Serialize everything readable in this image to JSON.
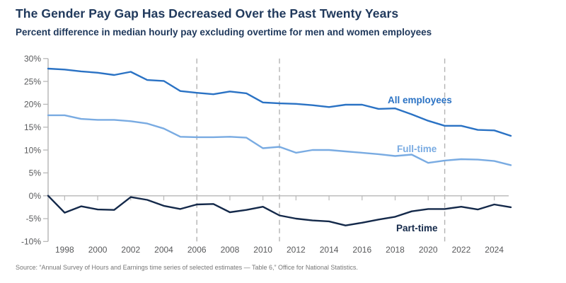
{
  "header": {
    "title": "The Gender Pay Gap Has Decreased Over the Past Twenty Years",
    "subtitle": "Percent difference in median hourly pay excluding overtime for men and women employees"
  },
  "source": "Source: “Annual Survey of Hours and Earnings time series of selected estimates — Table 6,” Office for National Statistics.",
  "colors": {
    "title_text": "#20395c",
    "axis_line": "#b9b9b9",
    "zero_line": "#bdbdbd",
    "dashed_line": "#b3b3b3",
    "tick_text": "#58595b",
    "all_employees": "#2a72c4",
    "full_time": "#79abe2",
    "part_time": "#14294a"
  },
  "chart_data": {
    "type": "line",
    "title": "The Gender Pay Gap Has Decreased Over the Past Twenty Years",
    "subtitle": "Percent difference in median hourly pay excluding overtime for men and women employees",
    "x": [
      1997,
      1998,
      1999,
      2000,
      2001,
      2002,
      2003,
      2004,
      2005,
      2006,
      2007,
      2008,
      2009,
      2010,
      2011,
      2012,
      2013,
      2014,
      2015,
      2016,
      2017,
      2018,
      2019,
      2020,
      2021,
      2022,
      2023,
      2024,
      2025
    ],
    "series": [
      {
        "name": "All employees",
        "color": "#2a72c4",
        "values": [
          27.8,
          27.6,
          27.2,
          26.9,
          26.4,
          27.1,
          25.3,
          25.1,
          22.9,
          22.5,
          22.2,
          22.8,
          22.4,
          20.4,
          20.2,
          20.1,
          19.8,
          19.4,
          19.9,
          19.9,
          19.0,
          19.1,
          17.8,
          16.4,
          15.3,
          15.3,
          14.4,
          14.3,
          13.1
        ]
      },
      {
        "name": "Full-time",
        "color": "#79abe2",
        "values": [
          17.6,
          17.6,
          16.8,
          16.6,
          16.6,
          16.3,
          15.8,
          14.7,
          12.9,
          12.8,
          12.8,
          12.9,
          12.7,
          10.4,
          10.7,
          9.4,
          10.0,
          10.0,
          9.7,
          9.4,
          9.1,
          8.7,
          9.0,
          7.2,
          7.7,
          8.0,
          7.9,
          7.6,
          6.7
        ]
      },
      {
        "name": "Part-time",
        "color": "#14294a",
        "values": [
          0.0,
          -3.7,
          -2.3,
          -3.0,
          -3.1,
          -0.3,
          -0.9,
          -2.2,
          -2.9,
          -1.9,
          -1.8,
          -3.6,
          -3.1,
          -2.4,
          -4.3,
          -5.0,
          -5.4,
          -5.6,
          -6.5,
          -5.9,
          -5.2,
          -4.6,
          -3.4,
          -2.9,
          -2.9,
          -2.4,
          -3.0,
          -1.9,
          -2.5
        ]
      }
    ],
    "xlabel": "",
    "ylabel": "",
    "ylim": [
      -10,
      30
    ],
    "yticks": [
      30,
      25,
      20,
      15,
      10,
      5,
      0,
      -5,
      -10
    ],
    "ytick_labels": [
      "30%",
      "25%",
      "20%",
      "15%",
      "10%",
      "5%",
      "0%",
      "-5%",
      "-10%"
    ],
    "xticks": [
      1998,
      2000,
      2002,
      2004,
      2006,
      2008,
      2010,
      2012,
      2014,
      2016,
      2018,
      2020,
      2022,
      2024
    ],
    "dashed_vlines": [
      2006,
      2011,
      2021
    ],
    "grid": "zero-baseline only, dashed vertical reference lines",
    "legend_position": "inline series labels"
  }
}
